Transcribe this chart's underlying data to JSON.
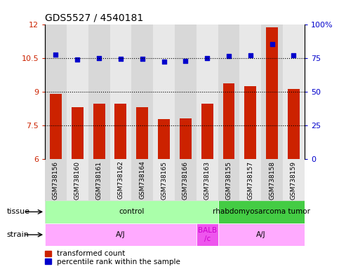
{
  "title": "GDS5527 / 4540181",
  "samples": [
    "GSM738156",
    "GSM738160",
    "GSM738161",
    "GSM738162",
    "GSM738164",
    "GSM738165",
    "GSM738166",
    "GSM738163",
    "GSM738155",
    "GSM738157",
    "GSM738158",
    "GSM738159"
  ],
  "bar_values": [
    8.9,
    8.3,
    8.45,
    8.45,
    8.3,
    7.78,
    7.8,
    8.45,
    9.35,
    9.25,
    11.85,
    9.1
  ],
  "dot_values": [
    10.65,
    10.42,
    10.5,
    10.47,
    10.45,
    10.32,
    10.35,
    10.5,
    10.58,
    10.6,
    11.12,
    10.6
  ],
  "bar_color": "#cc2200",
  "dot_color": "#0000cc",
  "ymin": 6,
  "ymax": 12,
  "yticks": [
    6,
    7.5,
    9,
    10.5,
    12
  ],
  "ytick_labels": [
    "6",
    "7.5",
    "9",
    "10.5",
    "12"
  ],
  "y2ticks": [
    0,
    25,
    50,
    75,
    100
  ],
  "y2tick_labels": [
    "0",
    "25",
    "50",
    "75",
    "100%"
  ],
  "tissue_labels": [
    {
      "text": "control",
      "start": 0,
      "end": 7,
      "color": "#aaffaa",
      "fontcolor": "black"
    },
    {
      "text": "rhabdomyosarcoma tumor",
      "start": 8,
      "end": 11,
      "color": "#44cc44",
      "fontcolor": "black"
    }
  ],
  "strain_labels": [
    {
      "text": "A/J",
      "start": 0,
      "end": 6,
      "color": "#ffaaff",
      "fontcolor": "black"
    },
    {
      "text": "BALB\n/c",
      "start": 7,
      "end": 7,
      "color": "#ee55ee",
      "fontcolor": "#cc00cc"
    },
    {
      "text": "A/J",
      "start": 8,
      "end": 11,
      "color": "#ffaaff",
      "fontcolor": "black"
    }
  ],
  "tissue_row_label": "tissue",
  "strain_row_label": "strain",
  "legend_bar": "transformed count",
  "legend_dot": "percentile rank within the sample",
  "dotted_lines": [
    7.5,
    9.0,
    10.5
  ],
  "bar_bottom": 6.0,
  "col_bg_colors": [
    "#d8d8d8",
    "#e8e8e8"
  ]
}
